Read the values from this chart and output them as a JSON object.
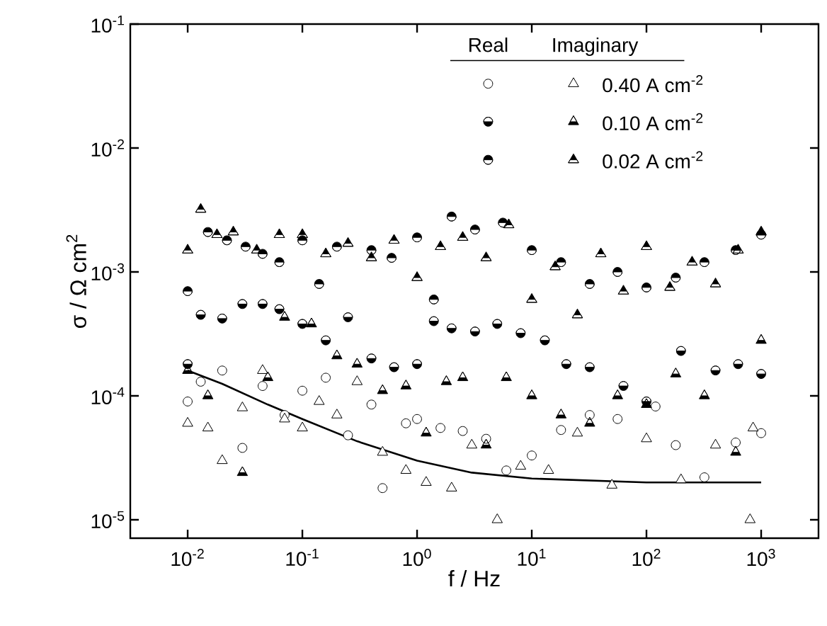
{
  "chart_data": {
    "type": "scatter",
    "xlabel": "f  / Hz",
    "ylabel": "σ / Ω cm$^{2}$",
    "log": "xy",
    "legend": "top right",
    "annotations": [
      "Real",
      "Imaginary"
    ],
    "xlim": [
      0.00316,
      3162
    ],
    "ylim": [
      7.1e-06,
      0.1
    ],
    "xticks": [
      {
        "value": 0.01,
        "label": "10$^{-2}$"
      },
      {
        "value": 0.1,
        "label": "10$^{-1}$"
      },
      {
        "value": 1,
        "label": "10$^{0}$"
      },
      {
        "value": 10,
        "label": "10$^{1}$"
      },
      {
        "value": 100,
        "label": "10$^{2}$"
      },
      {
        "value": 1000,
        "label": "10$^{3}$"
      }
    ],
    "yticks": [
      {
        "value": 1e-05,
        "label": "10$^{-5}$"
      },
      {
        "value": 0.0001,
        "label": "10$^{-4}$"
      },
      {
        "value": 0.001,
        "label": "10$^{-3}$"
      },
      {
        "value": 0.01,
        "label": "10$^{-2}$"
      },
      {
        "value": 0.1,
        "label": "10$^{-1}$"
      }
    ],
    "series": [
      {
        "marker": "circle",
        "color": "#000000",
        "x": [
          0.01,
          0.013,
          0.02,
          0.03,
          0.045,
          0.07,
          0.1,
          0.16,
          0.25,
          0.4,
          0.5,
          0.8,
          1,
          1.6,
          2.5,
          4,
          6,
          10,
          18,
          32,
          56,
          120,
          180,
          320,
          600,
          1000
        ],
        "values": [
          9e-05,
          0.00013,
          0.00016,
          3.8e-05,
          0.00012,
          7e-05,
          0.00011,
          0.00014,
          4.8e-05,
          8.5e-05,
          1.8e-05,
          6e-05,
          6.5e-05,
          5.5e-05,
          5.2e-05,
          4.5e-05,
          2.5e-05,
          3.3e-05,
          5.3e-05,
          7e-05,
          6.5e-05,
          8.2e-05,
          4e-05,
          2.2e-05,
          4.2e-05,
          5e-05
        ]
      },
      {
        "name": "0.40 A cm$^{-2}$",
        "marker": "triangle",
        "color": "#000000",
        "x": [
          0.01,
          0.015,
          0.02,
          0.03,
          0.045,
          0.07,
          0.1,
          0.14,
          0.2,
          0.3,
          0.5,
          0.8,
          1.2,
          2,
          3,
          5,
          8,
          14,
          25,
          50,
          100,
          200,
          400,
          800,
          850
        ],
        "values": [
          6e-05,
          5.5e-05,
          3e-05,
          8e-05,
          0.00016,
          6.5e-05,
          5.5e-05,
          9e-05,
          7e-05,
          0.00013,
          3.5e-05,
          2.5e-05,
          2e-05,
          1.8e-05,
          4e-05,
          1e-05,
          2.7e-05,
          2.5e-05,
          5e-05,
          1.9e-05,
          4.5e-05,
          2.1e-05,
          4e-05,
          1e-05,
          5.5e-05
        ]
      },
      {
        "marker": "circle",
        "color": "#000000",
        "x": [
          0.01,
          0.013,
          0.02,
          0.03,
          0.045,
          0.063,
          0.1,
          0.16,
          0.25,
          0.4,
          0.63,
          1,
          1.4,
          2,
          3.2,
          5,
          8,
          13,
          20,
          32,
          63,
          100,
          200,
          400,
          630,
          1000
        ],
        "values": [
          0.00018,
          0.00045,
          0.00042,
          0.00055,
          0.00055,
          0.0005,
          0.00038,
          0.00028,
          0.00043,
          0.0002,
          0.00017,
          0.00018,
          0.0004,
          0.00035,
          0.00033,
          0.00038,
          0.00032,
          0.00028,
          0.00018,
          0.00017,
          0.00012,
          9e-05,
          0.00023,
          0.00016,
          0.00018,
          0.00015
        ]
      },
      {
        "name": "0.10 A cm$^{-2}$",
        "marker": "triangle",
        "color": "#000000",
        "x": [
          0.01,
          0.015,
          0.03,
          0.05,
          0.07,
          0.12,
          0.2,
          0.3,
          0.5,
          0.8,
          1.2,
          1.8,
          2.5,
          4,
          6,
          10,
          18,
          32,
          56,
          100,
          180,
          320,
          600,
          1000
        ],
        "values": [
          0.00016,
          0.0001,
          2.4e-05,
          0.00014,
          0.00043,
          0.00038,
          0.00021,
          0.00018,
          0.00011,
          0.00012,
          5e-05,
          0.00013,
          0.00014,
          4e-05,
          0.00014,
          0.0001,
          7e-05,
          6e-05,
          0.0001,
          8.5e-05,
          0.00015,
          0.0001,
          3.5e-05,
          0.00028
        ]
      },
      {
        "marker": "circle",
        "color": "#000000",
        "x": [
          0.01,
          0.015,
          0.022,
          0.032,
          0.045,
          0.063,
          0.1,
          0.14,
          0.2,
          0.4,
          0.6,
          1,
          1.4,
          2,
          3.2,
          5.6,
          10,
          18,
          32,
          56,
          100,
          180,
          320,
          600,
          1000
        ],
        "values": [
          0.0007,
          0.0021,
          0.0018,
          0.0016,
          0.0014,
          0.0012,
          0.0018,
          0.0008,
          0.0016,
          0.0015,
          0.0013,
          0.0019,
          0.0006,
          0.0028,
          0.0022,
          0.0025,
          0.0015,
          0.0012,
          0.0008,
          0.001,
          0.00075,
          0.0009,
          0.0012,
          0.0015,
          0.002
        ]
      },
      {
        "name": "0.02 A cm$^{-2}$",
        "marker": "triangle",
        "color": "#000000",
        "x": [
          0.01,
          0.013,
          0.018,
          0.025,
          0.04,
          0.063,
          0.1,
          0.16,
          0.25,
          0.4,
          0.63,
          1,
          1.6,
          2.5,
          4,
          6.3,
          10,
          16,
          25,
          40,
          63,
          100,
          160,
          250,
          400,
          630,
          1000
        ],
        "values": [
          0.0015,
          0.0032,
          0.002,
          0.0021,
          0.0015,
          0.002,
          0.002,
          0.0014,
          0.0017,
          0.0013,
          0.0018,
          0.0009,
          0.0016,
          0.0019,
          0.0013,
          0.0024,
          0.0006,
          0.0011,
          0.00045,
          0.0014,
          0.0007,
          0.0016,
          0.00075,
          0.0012,
          0.0008,
          0.0015,
          0.0021
        ]
      },
      {
        "type": "line",
        "marker": "none",
        "line_style": "solid",
        "color": "#000000",
        "x": [
          0.01,
          0.02,
          0.05,
          0.1,
          0.3,
          1,
          3,
          10,
          100,
          1000
        ],
        "values": [
          0.00016,
          0.000125,
          8.5e-05,
          6.5e-05,
          4.3e-05,
          3e-05,
          2.4e-05,
          2.15e-05,
          2e-05,
          2e-05
        ]
      }
    ]
  }
}
